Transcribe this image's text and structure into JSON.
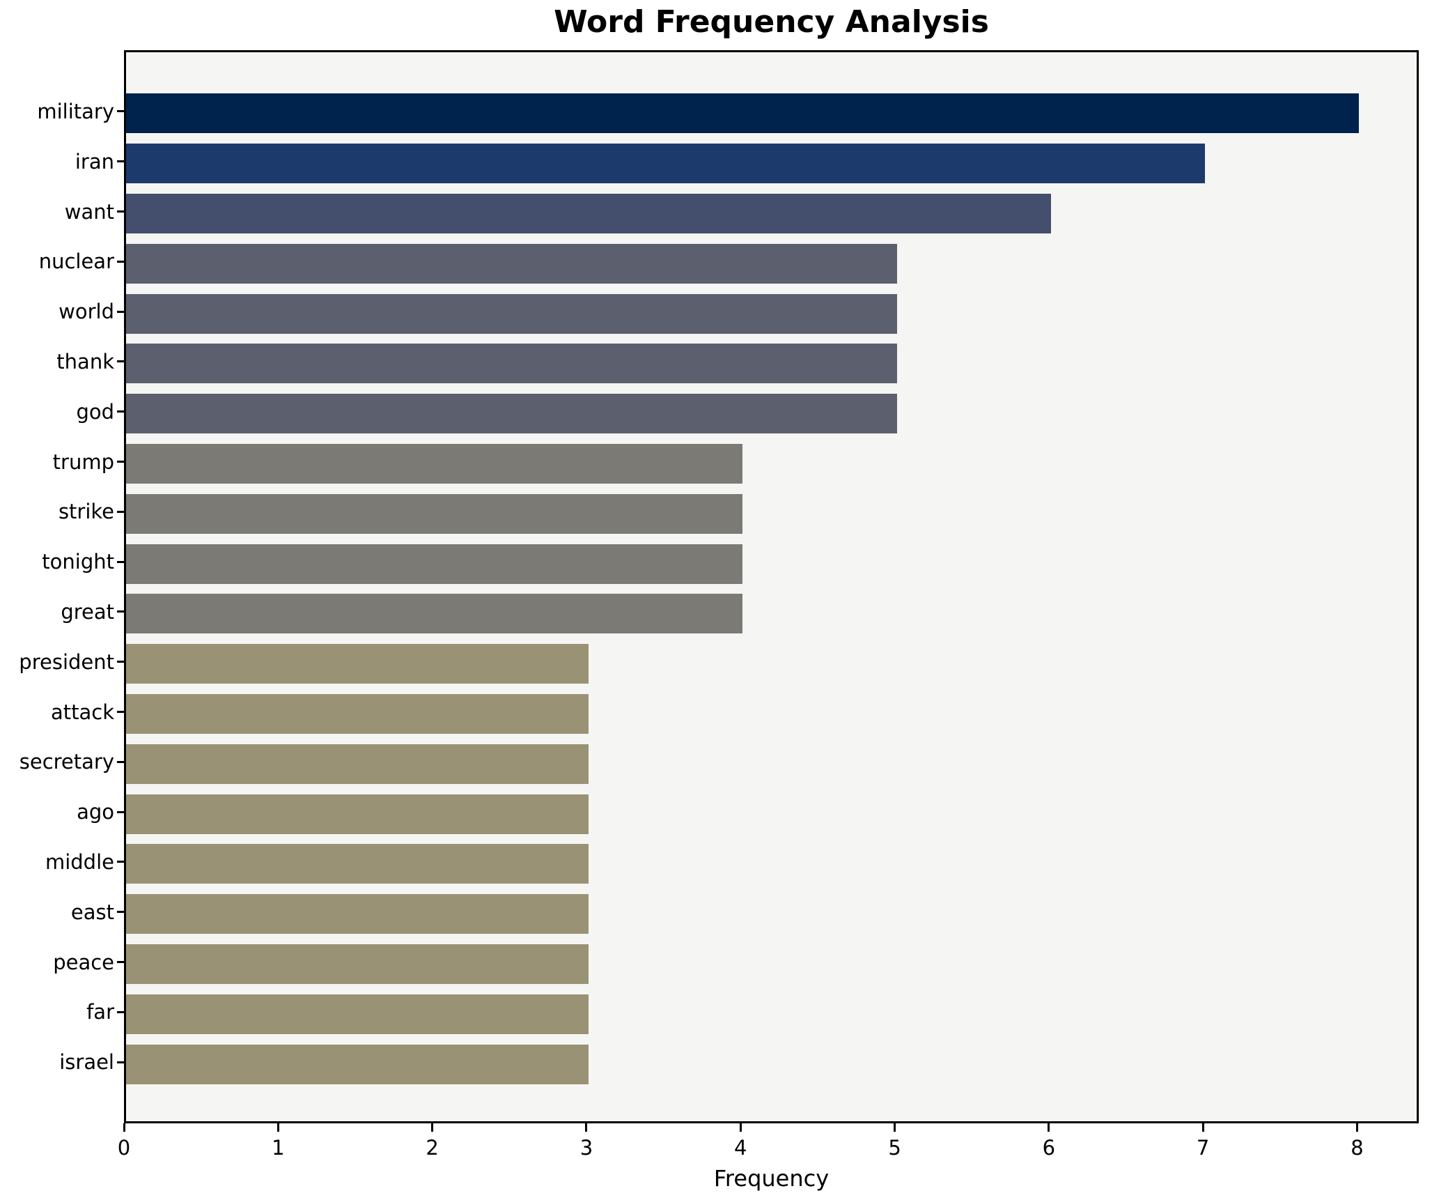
{
  "title": "Word Frequency Analysis",
  "xlabel": "Frequency",
  "chart_data": {
    "type": "bar",
    "orientation": "horizontal",
    "title": "Word Frequency Analysis",
    "xlabel": "Frequency",
    "ylabel": "",
    "categories": [
      "military",
      "iran",
      "want",
      "nuclear",
      "world",
      "thank",
      "god",
      "trump",
      "strike",
      "tonight",
      "great",
      "president",
      "attack",
      "secretary",
      "ago",
      "middle",
      "east",
      "peace",
      "far",
      "israel"
    ],
    "values": [
      8,
      7,
      6,
      5,
      5,
      5,
      5,
      4,
      4,
      4,
      4,
      3,
      3,
      3,
      3,
      3,
      3,
      3,
      3,
      3
    ],
    "xticks": [
      0,
      1,
      2,
      3,
      4,
      5,
      6,
      7,
      8
    ],
    "xlim": [
      0,
      8.4
    ],
    "grid": false,
    "legend": null,
    "value_colors": {
      "8": "#00234d",
      "7": "#1d3a6c",
      "6": "#444e6d",
      "5": "#5c606e",
      "4": "#7b7a75",
      "3": "#999274"
    },
    "plot_background": "#f5f5f3",
    "figure_background": "#ffffff",
    "spine_color": "#000000",
    "text_color": "#000000"
  }
}
